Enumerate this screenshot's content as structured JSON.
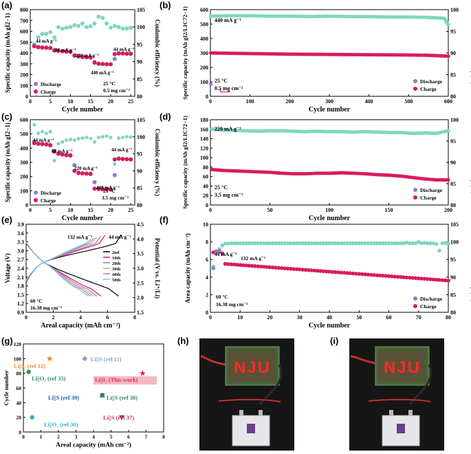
{
  "colors": {
    "charge": "#d81b60",
    "discharge": "#8080d0",
    "ce": "#7fd6c2",
    "dark_photo": "#141414",
    "highlight": "#f6b8c4"
  },
  "labels": {
    "a": "(a)",
    "b": "(b)",
    "c": "(c)",
    "d": "(d)",
    "e": "(e)",
    "f": "(f)",
    "g": "(g)",
    "h": "(h)",
    "i": "(i)"
  },
  "photos": {
    "board_text": "NJU"
  },
  "chart_data": [
    {
      "panel": "a",
      "type": "scatter",
      "xlabel": "Cycle number",
      "ylabel": "Specific capacity (mAh g<sub>I2</sub><sup>−1</sup>)",
      "y2label": "Coulombic efficiency (%)",
      "xlim": [
        0,
        26
      ],
      "ylim": [
        0,
        800
      ],
      "y2lim": [
        80,
        105
      ],
      "xticks": [
        0,
        5,
        10,
        15,
        20,
        25
      ],
      "yticks": [
        0,
        100,
        200,
        300,
        400,
        500,
        600,
        700,
        800
      ],
      "y2ticks": [
        80,
        85,
        90,
        95,
        100,
        105
      ],
      "annotations": [
        "44 mA g⁻¹",
        "88 mA g⁻¹",
        "220 mA g⁻¹",
        "440 mA g⁻¹",
        "44 mA g⁻¹",
        "25 °C",
        "0.5 mg cm⁻²"
      ],
      "legend": [
        "Discharge",
        "Charge"
      ],
      "series": [
        {
          "name": "Charge",
          "x": [
            1,
            2,
            3,
            4,
            5,
            6,
            7,
            8,
            9,
            10,
            11,
            12,
            13,
            14,
            15,
            16,
            17,
            18,
            19,
            20,
            21,
            22,
            23,
            24,
            25
          ],
          "y": [
            462,
            452,
            450,
            448,
            445,
            422,
            418,
            415,
            412,
            410,
            375,
            368,
            362,
            360,
            358,
            310,
            300,
            298,
            296,
            295,
            390,
            395,
            395,
            393,
            392
          ]
        },
        {
          "name": "Discharge",
          "x": [
            1,
            2,
            3,
            4,
            5,
            6,
            7,
            8,
            9,
            10,
            11,
            12,
            13,
            14,
            15,
            16,
            17,
            18,
            19,
            20,
            21,
            22,
            23,
            24,
            25
          ],
          "y": [
            470,
            456,
            452,
            450,
            447,
            428,
            420,
            416,
            413,
            411,
            380,
            370,
            364,
            362,
            360,
            316,
            302,
            299,
            297,
            296,
            345,
            398,
            396,
            394,
            393
          ]
        },
        {
          "name": "Coulombic efficiency",
          "x": [
            1,
            2,
            3,
            4,
            5,
            6,
            7,
            8,
            9,
            10,
            11,
            12,
            13,
            14,
            15,
            16,
            17,
            18,
            19,
            20,
            21,
            22,
            23,
            24,
            25
          ],
          "y": [
            95,
            97,
            98,
            98,
            98.5,
            97,
            100,
            99.5,
            99.8,
            100,
            100.5,
            100.3,
            101,
            100,
            100.2,
            101,
            103,
            102.6,
            101,
            99.8,
            100.3,
            100,
            99.5,
            99.6,
            99.8
          ]
        }
      ]
    },
    {
      "panel": "b",
      "type": "scatter",
      "xlabel": "Cycle number",
      "ylabel": "Specific capacity (mAh g<sub>I2/LIC72</sub><sup>−1</sup>)",
      "y2label": "Coulombic efficiency (%)",
      "xlim": [
        0,
        600
      ],
      "ylim": [
        0,
        600
      ],
      "y2lim": [
        80,
        100
      ],
      "xticks": [
        0,
        100,
        200,
        300,
        400,
        500,
        600
      ],
      "yticks": [
        0,
        100,
        200,
        300,
        400,
        500,
        600
      ],
      "y2ticks": [
        80,
        85,
        90,
        95,
        100
      ],
      "annotations": [
        "440 mA g⁻¹",
        "25 °C",
        "0.5 mg cm⁻²"
      ],
      "legend": [
        "Discharge",
        "Charge"
      ],
      "series": [
        {
          "name": "Charge",
          "x": [
            1,
            50,
            100,
            150,
            200,
            250,
            300,
            350,
            400,
            450,
            500,
            550,
            600
          ],
          "y": [
            300,
            298,
            296,
            294,
            292,
            291,
            290,
            289,
            288,
            287,
            286,
            284,
            278
          ]
        },
        {
          "name": "Coulombic efficiency",
          "x": [
            1,
            50,
            100,
            150,
            200,
            250,
            300,
            350,
            400,
            450,
            500,
            550,
            590,
            600
          ],
          "y": [
            98.5,
            98.6,
            98.6,
            98.5,
            98.5,
            98.4,
            98.5,
            98.4,
            98.4,
            98.3,
            98.3,
            98.2,
            98,
            96.5
          ]
        }
      ]
    },
    {
      "panel": "c",
      "type": "scatter",
      "xlabel": "Cycle number",
      "ylabel": "Specific capacity (mAh g<sub>I2</sub><sup>−1</sup>)",
      "y2label": "Coulombic efficiency (%)",
      "xlim": [
        0,
        26
      ],
      "ylim": [
        0,
        600
      ],
      "y2lim": [
        80,
        105
      ],
      "xticks": [
        0,
        5,
        10,
        15,
        20,
        25
      ],
      "yticks": [
        0,
        100,
        200,
        300,
        400,
        500,
        600
      ],
      "y2ticks": [
        80,
        85,
        90,
        95,
        100,
        105
      ],
      "annotations": [
        "44 mA g⁻¹",
        "88 mA g⁻¹",
        "220 mA g⁻¹",
        "440 mA g⁻¹",
        "44 mA g⁻¹",
        "25 °C",
        "3.5 mg cm⁻²"
      ],
      "legend": [
        "Discharge",
        "Charge"
      ],
      "series": [
        {
          "name": "Charge",
          "x": [
            1,
            2,
            3,
            4,
            5,
            6,
            7,
            8,
            9,
            10,
            11,
            12,
            13,
            14,
            15,
            16,
            17,
            18,
            19,
            20,
            21,
            22,
            23,
            24,
            25
          ],
          "y": [
            435,
            430,
            428,
            425,
            420,
            375,
            360,
            355,
            350,
            348,
            240,
            225,
            222,
            220,
            218,
            115,
            112,
            110,
            110,
            108,
            320,
            325,
            323,
            322,
            320
          ]
        },
        {
          "name": "Discharge",
          "x": [
            1,
            2,
            3,
            4,
            5,
            6,
            7,
            8,
            9,
            10,
            11,
            12,
            13,
            14,
            15,
            16,
            17,
            18,
            19,
            20,
            21,
            22,
            23,
            24,
            25
          ],
          "y": [
            445,
            432,
            430,
            427,
            422,
            380,
            362,
            357,
            352,
            350,
            280,
            228,
            224,
            222,
            220,
            160,
            115,
            112,
            111,
            110,
            210,
            328,
            325,
            323,
            322
          ]
        },
        {
          "name": "Coulombic efficiency",
          "x": [
            1,
            2,
            3,
            4,
            5,
            6,
            7,
            8,
            9,
            10,
            11,
            12,
            13,
            14,
            15,
            16,
            17,
            18,
            19,
            20,
            21,
            22,
            23,
            24,
            25
          ],
          "y": [
            103.5,
            101,
            101.5,
            101,
            101.5,
            93,
            98,
            98.5,
            99,
            99.2,
            99,
            99.4,
            99.6,
            99.8,
            99.5,
            98.5,
            99.8,
            100,
            100.2,
            99.8,
            92,
            99.6,
            99.8,
            100,
            99.9
          ]
        }
      ]
    },
    {
      "panel": "d",
      "type": "scatter",
      "xlabel": "Cycle number",
      "ylabel": "Specific capacity (mAh g<sub>I2/LIC72</sub><sup>−1</sup>)",
      "y2label": "Coulombic efficiency (%)",
      "xlim": [
        0,
        200
      ],
      "ylim": [
        0,
        180
      ],
      "y2lim": [
        80,
        100
      ],
      "xticks": [
        0,
        50,
        100,
        150,
        200
      ],
      "yticks": [
        0,
        20,
        40,
        60,
        80,
        100,
        120,
        140,
        160,
        180
      ],
      "y2ticks": [
        80,
        85,
        90,
        95,
        100
      ],
      "annotations": [
        "220 mA g⁻¹",
        "25 °C",
        "3.5 mg cm⁻²"
      ],
      "legend": [
        "Discharge",
        "Charge"
      ],
      "series": [
        {
          "name": "Charge",
          "x": [
            1,
            10,
            20,
            30,
            40,
            50,
            60,
            70,
            80,
            90,
            100,
            110,
            120,
            130,
            140,
            150,
            160,
            170,
            180,
            190,
            200
          ],
          "y": [
            75,
            73,
            72,
            71,
            70,
            69,
            67,
            66,
            66,
            67,
            67,
            68,
            67,
            66,
            64,
            63,
            61,
            58,
            55,
            53,
            53
          ]
        },
        {
          "name": "Coulombic efficiency",
          "x": [
            1,
            10,
            20,
            30,
            40,
            50,
            60,
            70,
            80,
            90,
            100,
            110,
            120,
            130,
            140,
            150,
            160,
            170,
            180,
            190,
            200
          ],
          "y": [
            97.8,
            97.6,
            97.5,
            97.4,
            97.3,
            97.4,
            97.4,
            97.3,
            97.2,
            97.3,
            97.2,
            97.2,
            97.1,
            97.2,
            97.1,
            97,
            97,
            96.8,
            96.9,
            96.8,
            97.4
          ]
        }
      ]
    },
    {
      "panel": "e",
      "type": "line",
      "xlabel": "Areal capacity (mAh cm⁻²)",
      "ylabel": "Voltage (V)",
      "y2label": "Potential (V vs. Li⁺/Li)",
      "xlim": [
        0,
        8
      ],
      "ylim": [
        0.9,
        3.9
      ],
      "y2lim": [
        1.5,
        4.5
      ],
      "xticks": [
        0,
        2,
        4,
        6,
        8
      ],
      "yticks": [
        0.9,
        1.2,
        1.5,
        1.8,
        2.1,
        2.4,
        2.7,
        3.0,
        3.3,
        3.6,
        3.9
      ],
      "y2ticks": [
        1.5,
        2.0,
        2.5,
        3.0,
        3.5,
        4.0,
        4.5
      ],
      "annotations": [
        "132 mA g⁻¹",
        "44 mA g⁻¹",
        "60 °C",
        "16.38 mg cm⁻²"
      ],
      "legend": [
        "2nd",
        "10th",
        "20th",
        "30th",
        "40th",
        "50th"
      ],
      "series": [
        {
          "name": "2nd",
          "color": "#000000",
          "charge_end": 7.0,
          "discharge_end": 6.8
        },
        {
          "name": "10th",
          "color": "#d81b60",
          "charge_end": 5.8,
          "discharge_end": 5.5
        },
        {
          "name": "20th",
          "color": "#7f7fff",
          "charge_end": 5.5,
          "discharge_end": 5.2
        },
        {
          "name": "30th",
          "color": "#e8a040",
          "charge_end": 5.2,
          "discharge_end": 4.95
        },
        {
          "name": "40th",
          "color": "#b07bd8",
          "charge_end": 5.0,
          "discharge_end": 4.75
        },
        {
          "name": "50th",
          "color": "#70c8d8",
          "charge_end": 4.8,
          "discharge_end": 4.55
        }
      ]
    },
    {
      "panel": "f",
      "type": "scatter",
      "xlabel": "Cycle number",
      "ylabel": "Area capacity (mAh cm⁻²)",
      "y2label": "Coulombic efficiency (%)",
      "xlim": [
        0,
        80
      ],
      "ylim": [
        0,
        10
      ],
      "y2lim": [
        80,
        105
      ],
      "xticks": [
        0,
        10,
        20,
        30,
        40,
        50,
        60,
        70,
        80
      ],
      "yticks": [
        0,
        2,
        4,
        6,
        8,
        10
      ],
      "y2ticks": [
        80,
        85,
        90,
        95,
        100,
        105
      ],
      "annotations": [
        "44 mA g⁻¹",
        "132 mA g⁻¹",
        "60 °C",
        "16.38 mg cm⁻²"
      ],
      "legend": [
        "Discharge",
        "Charge"
      ],
      "series": [
        {
          "name": "Charge",
          "x": [
            1,
            2,
            3,
            4,
            5,
            10,
            20,
            30,
            40,
            50,
            60,
            70,
            80
          ],
          "y": [
            6.8,
            6.9,
            6.9,
            6.7,
            5.5,
            5.4,
            5.2,
            5.0,
            4.8,
            4.5,
            4.2,
            3.9,
            3.6
          ]
        },
        {
          "name": "Discharge",
          "x": [
            1,
            2,
            3
          ],
          "y": [
            5.0,
            6.8,
            7.0
          ]
        },
        {
          "name": "Coulombic efficiency",
          "x": [
            1,
            2,
            3,
            4,
            5,
            6,
            10,
            20,
            30,
            40,
            50,
            60,
            66,
            70,
            75,
            78,
            80
          ],
          "y": [
            93,
            97,
            98,
            99,
            99.5,
            99.5,
            99.6,
            99.6,
            99.6,
            99.6,
            99.6,
            99.6,
            99.8,
            100,
            99.6,
            97.5,
            100
          ]
        }
      ]
    },
    {
      "panel": "g",
      "type": "scatter",
      "xlabel": "Areal capacity (mAh cm⁻²)",
      "ylabel": "Cycle number",
      "xlim": [
        0,
        8
      ],
      "ylim": [
        0,
        120
      ],
      "xticks": [
        0,
        1,
        2,
        3,
        4,
        5,
        6,
        7,
        8
      ],
      "yticks": [
        0,
        20,
        40,
        60,
        80,
        100,
        120
      ],
      "points": [
        {
          "label": "Li||I₂ (ref 12)",
          "x": 1.5,
          "y": 100,
          "color": "#f08a24",
          "marker": "star"
        },
        {
          "label": "Li||S (ref 11)",
          "x": 3.5,
          "y": 100,
          "color": "#8aa0c8",
          "marker": "diamond"
        },
        {
          "label": "Li||O₂ (ref 35)",
          "x": 0.3,
          "y": 82,
          "color": "#2e8b57",
          "marker": "circle"
        },
        {
          "label": "Li||I₂ (This work)",
          "x": 6.8,
          "y": 80,
          "color": "#e0304a",
          "marker": "star"
        },
        {
          "label": "Li||S (ref 39)",
          "x": 4.5,
          "y": 50,
          "color": "#1a5fb4",
          "marker": "square"
        },
        {
          "label": "Li||S (ref 38)",
          "x": 4.5,
          "y": 50,
          "color": "#2e8b57",
          "marker": "triangle-up"
        },
        {
          "label": "Li||O₂ (ref 36)",
          "x": 0.5,
          "y": 20,
          "color": "#2bb3c8",
          "marker": "circle"
        },
        {
          "label": "Li||S (ref 37)",
          "x": 5.6,
          "y": 20,
          "color": "#c0306a",
          "marker": "triangle-down"
        }
      ]
    }
  ]
}
